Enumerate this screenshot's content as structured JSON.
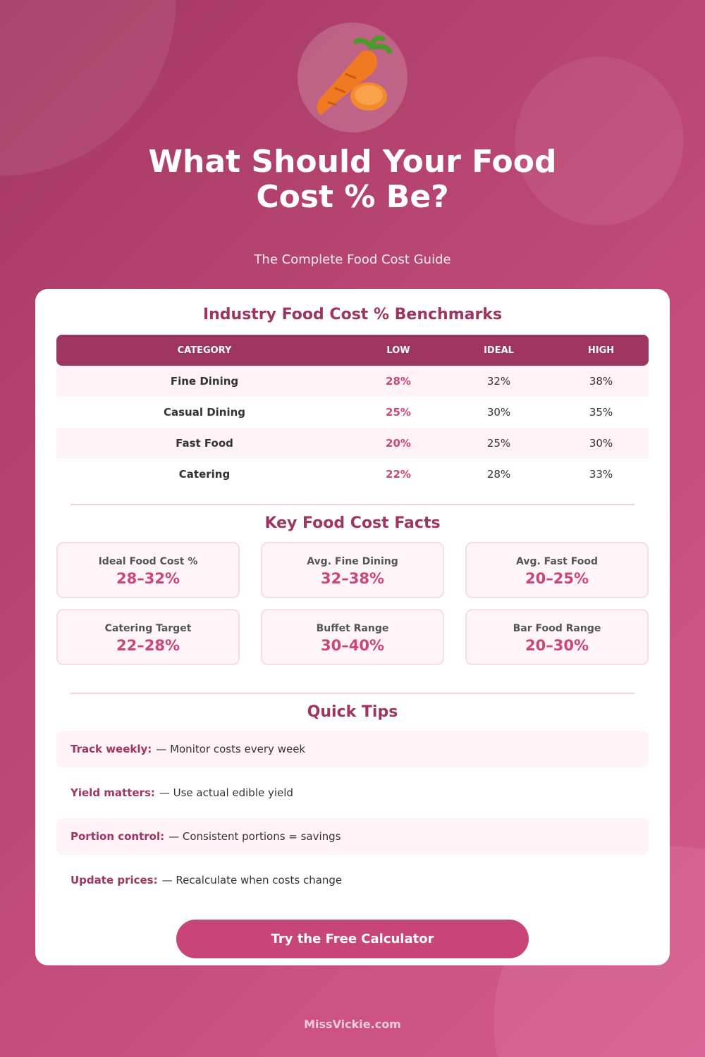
{
  "header": {
    "icon": "carrot-icon",
    "title_line1": "What Should Your Food",
    "title_line2": "Cost % Be?",
    "subtitle": "The Complete Food Cost Guide"
  },
  "benchmarks": {
    "title": "Industry Food Cost % Benchmarks",
    "columns": [
      "CATEGORY",
      "LOW",
      "IDEAL",
      "HIGH"
    ],
    "rows": [
      [
        "Fine Dining",
        "28%",
        "32%",
        "38%"
      ],
      [
        "Casual Dining",
        "25%",
        "30%",
        "35%"
      ],
      [
        "Fast Food",
        "20%",
        "25%",
        "30%"
      ],
      [
        "Catering",
        "22%",
        "28%",
        "33%"
      ]
    ]
  },
  "facts": {
    "title": "Key Food Cost Facts",
    "items": [
      {
        "label": "Ideal Food Cost %",
        "value": "28–32%"
      },
      {
        "label": "Avg. Fine Dining",
        "value": "32–38%"
      },
      {
        "label": "Avg. Fast Food",
        "value": "20–25%"
      },
      {
        "label": "Catering Target",
        "value": "22–28%"
      },
      {
        "label": "Buffet Range",
        "value": "30–40%"
      },
      {
        "label": "Bar Food Range",
        "value": "20–30%"
      }
    ]
  },
  "tips": {
    "title": "Quick Tips",
    "items": [
      {
        "label": "Track weekly:",
        "text": "— Monitor costs every week"
      },
      {
        "label": "Yield matters:",
        "text": "— Use actual edible yield"
      },
      {
        "label": "Portion control:",
        "text": "— Consistent portions = savings"
      },
      {
        "label": "Update prices:",
        "text": "— Recalculate when costs change"
      }
    ]
  },
  "cta": {
    "label": "Try the Free Calculator"
  },
  "footer": {
    "brand": "MissVickie.com"
  },
  "colors": {
    "primary": "#9e3460",
    "accent": "#cc4479",
    "button": "#c84577"
  }
}
